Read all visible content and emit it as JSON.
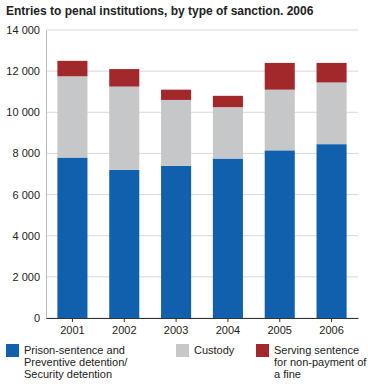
{
  "chart_data": {
    "type": "bar",
    "title": "Entries to penal institutions, by type of sanction. 2006",
    "categories": [
      "2001",
      "2002",
      "2003",
      "2004",
      "2005",
      "2006"
    ],
    "series": [
      {
        "name": "Prison-sentence and Preventive detention/ Security detention",
        "color": "#1160ae",
        "values": [
          7800,
          7200,
          7400,
          7750,
          8150,
          8450
        ]
      },
      {
        "name": "Custody",
        "color": "#c6c7c9",
        "values": [
          3950,
          4050,
          3200,
          2500,
          2950,
          3000
        ]
      },
      {
        "name": "Serving sentence for non-payment of a fine",
        "color": "#a3282c",
        "values": [
          750,
          850,
          500,
          550,
          1300,
          950
        ]
      }
    ],
    "stacked": true,
    "grid": true,
    "legend": "bottom",
    "ylim": [
      0,
      14000
    ],
    "yticks": [
      0,
      {
        "value": 2000,
        "label": "2 000"
      },
      {
        "value": 4000,
        "label": "4 000"
      },
      {
        "value": 6000,
        "label": "6 000"
      },
      {
        "value": 8000,
        "label": "8 000"
      },
      {
        "value": 10000,
        "label": "10 000"
      },
      {
        "value": 12000,
        "label": "12 000"
      },
      {
        "value": 14000,
        "label": "14 000"
      }
    ]
  }
}
